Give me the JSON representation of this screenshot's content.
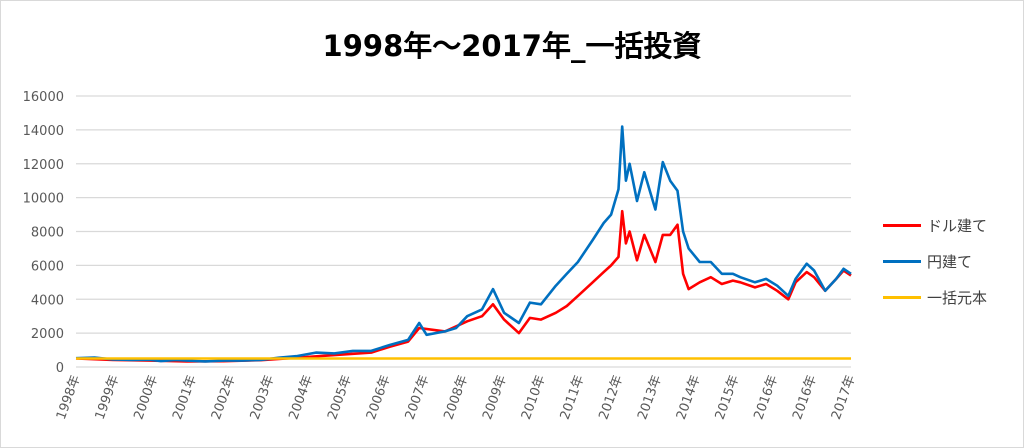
{
  "chart_data": {
    "type": "line",
    "title": "1998年～2017年_一括投資",
    "xlabel": "",
    "ylabel": "",
    "ylim": [
      0,
      16000
    ],
    "yticks": [
      "0",
      "2000",
      "4000",
      "6000",
      "8000",
      "10000",
      "12000",
      "14000",
      "16000"
    ],
    "xlim": [
      1998,
      2019
    ],
    "xtick_labels": [
      "1998年",
      "1999年",
      "2000年",
      "2001年",
      "2002年",
      "2003年",
      "2004年",
      "2005年",
      "2006年",
      "2007年",
      "2008年",
      "2009年",
      "2010年",
      "2011年",
      "2012年",
      "2013年",
      "2014年",
      "2015年",
      "2016年",
      "2016年",
      "2017年"
    ],
    "grid": true,
    "legend_position": "right",
    "series": [
      {
        "name": "ドル建て",
        "color": "#ff0000",
        "x": [
          1998,
          1999,
          2000,
          2001,
          2002,
          2003,
          2004,
          2005,
          2006,
          2006.5,
          2007,
          2007.3,
          2008,
          2008.6,
          2009,
          2009.3,
          2009.6,
          2010,
          2010.3,
          2010.6,
          2011,
          2011.3,
          2011.6,
          2012,
          2012.3,
          2012.5,
          2012.7,
          2012.8,
          2012.9,
          2013,
          2013.2,
          2013.4,
          2013.7,
          2013.9,
          2014.1,
          2014.3,
          2014.45,
          2014.6,
          2014.9,
          2015.2,
          2015.5,
          2015.8,
          2016,
          2016.4,
          2016.7,
          2017,
          2017.3,
          2017.5,
          2017.8,
          2018,
          2018.3,
          2018.6,
          2018.8,
          2019
        ],
        "y": [
          500,
          420,
          380,
          330,
          340,
          400,
          550,
          700,
          850,
          1200,
          1500,
          2300,
          2100,
          2700,
          3000,
          3700,
          2800,
          2000,
          2900,
          2800,
          3200,
          3600,
          4200,
          5000,
          5600,
          6000,
          6500,
          9200,
          7300,
          8000,
          6300,
          7800,
          6200,
          7800,
          7800,
          8400,
          5500,
          4600,
          5000,
          5300,
          4900,
          5100,
          5000,
          4700,
          4900,
          4500,
          4000,
          5000,
          5600,
          5300,
          4500,
          5200,
          5700,
          5400
        ]
      },
      {
        "name": "円建て",
        "color": "#0070c0",
        "x": [
          1998,
          1998.5,
          1999,
          1999.5,
          2000,
          2000.3,
          2000.7,
          2001,
          2001.5,
          2002,
          2002.5,
          2003,
          2003.5,
          2004,
          2004.5,
          2005,
          2005.5,
          2006,
          2006.5,
          2007,
          2007.3,
          2007.5,
          2008,
          2008.3,
          2008.6,
          2009,
          2009.3,
          2009.6,
          2010,
          2010.3,
          2010.6,
          2011,
          2011.3,
          2011.6,
          2012,
          2012.3,
          2012.5,
          2012.7,
          2012.8,
          2012.9,
          2013,
          2013.2,
          2013.4,
          2013.7,
          2013.9,
          2014.1,
          2014.3,
          2014.45,
          2014.6,
          2014.9,
          2015.2,
          2015.5,
          2015.8,
          2016,
          2016.4,
          2016.7,
          2017,
          2017.3,
          2017.5,
          2017.8,
          2018,
          2018.3,
          2018.6,
          2018.8,
          2019
        ],
        "y": [
          520,
          560,
          450,
          420,
          430,
          350,
          420,
          380,
          330,
          380,
          380,
          420,
          550,
          650,
          850,
          800,
          950,
          950,
          1300,
          1600,
          2600,
          1900,
          2100,
          2300,
          3000,
          3400,
          4600,
          3200,
          2600,
          3800,
          3700,
          4800,
          5500,
          6200,
          7500,
          8500,
          9000,
          10500,
          14200,
          11000,
          12000,
          9800,
          11500,
          9300,
          12100,
          11000,
          10400,
          8000,
          7000,
          6200,
          6200,
          5500,
          5500,
          5300,
          5000,
          5200,
          4800,
          4200,
          5200,
          6100,
          5700,
          4500,
          5200,
          5800,
          5500
        ]
      },
      {
        "name": "一括元本",
        "color": "#ffc000",
        "x": [
          1998,
          2019
        ],
        "y": [
          500,
          500
        ]
      }
    ]
  }
}
